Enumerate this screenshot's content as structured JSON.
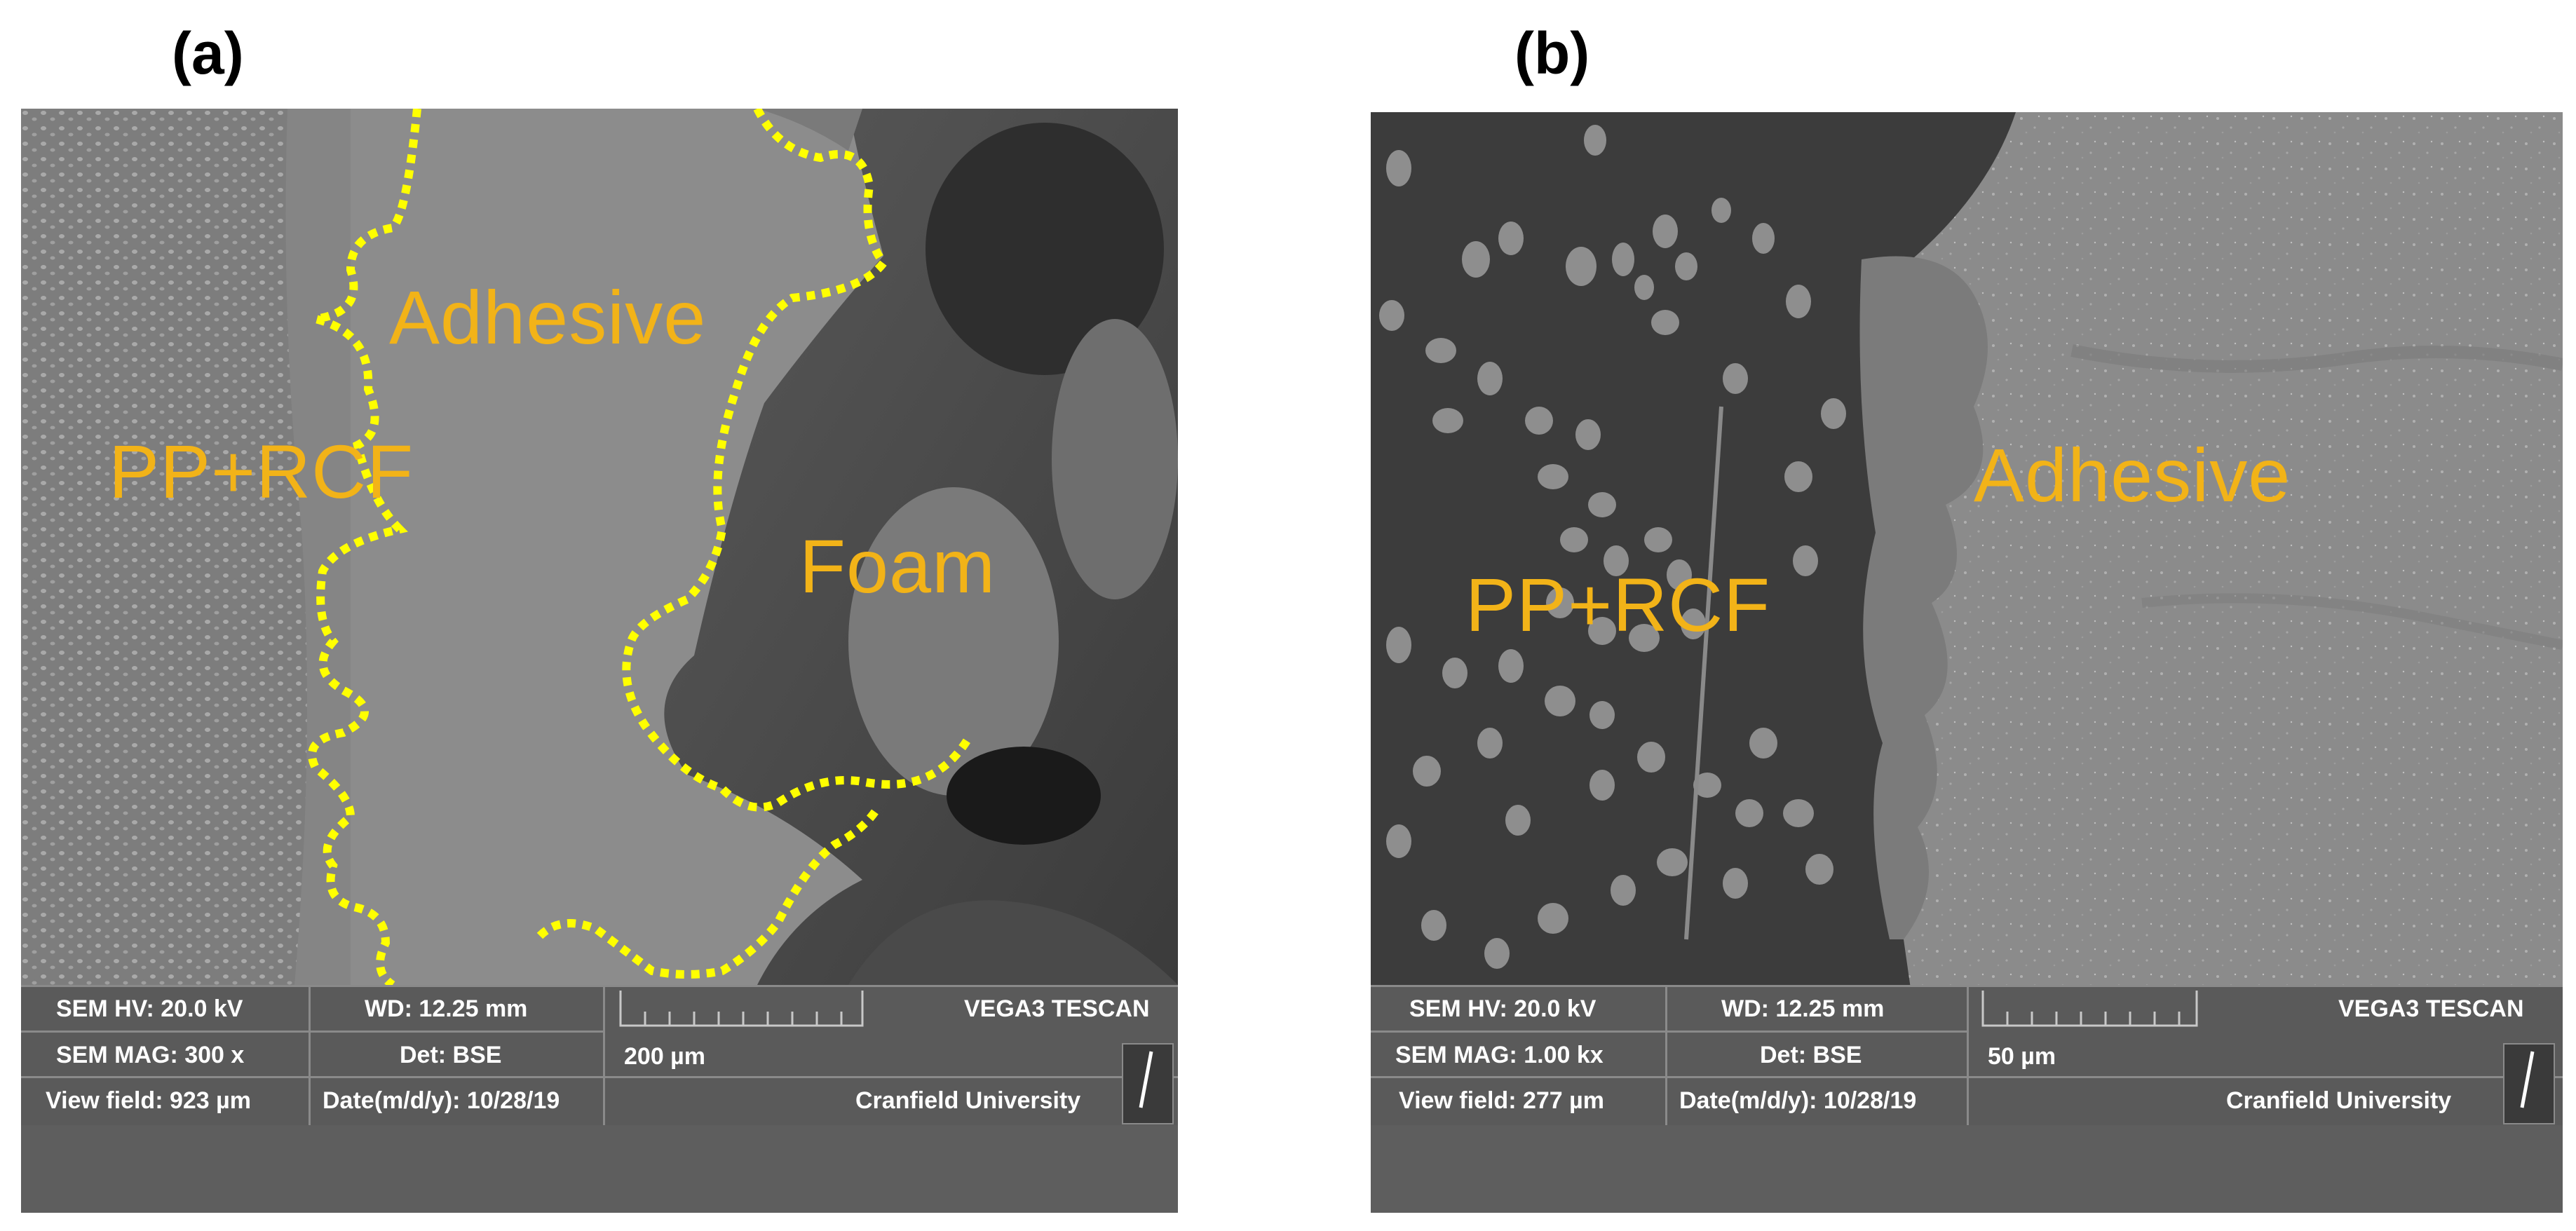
{
  "panels": {
    "a": {
      "letter": "(a)",
      "labels": {
        "pp": "PP+RCF",
        "adhesive": "Adhesive",
        "foam": "Foam"
      },
      "databar": {
        "hv": "SEM HV: 20.0 kV",
        "wd": "WD: 12.25 mm",
        "scale": "200 µm",
        "brand": "VEGA3 TESCAN",
        "mag": "SEM MAG: 300 x",
        "det": "Det: BSE",
        "view": "View field: 923 µm",
        "date": "Date(m/d/y): 10/28/19",
        "org": "Cranfield University"
      }
    },
    "b": {
      "letter": "(b)",
      "labels": {
        "pp": "PP+RCF",
        "adhesive": "Adhesive"
      },
      "databar": {
        "hv": "SEM HV: 20.0 kV",
        "wd": "WD: 12.25 mm",
        "scale": "50 µm",
        "brand": "VEGA3 TESCAN",
        "mag": "SEM MAG: 1.00 kx",
        "det": "Det: BSE",
        "view": "View field: 277 µm",
        "date": "Date(m/d/y): 10/28/19",
        "org": "Cranfield University"
      }
    }
  },
  "colors": {
    "label": "#f2b318",
    "boundary": "#ffff00"
  }
}
